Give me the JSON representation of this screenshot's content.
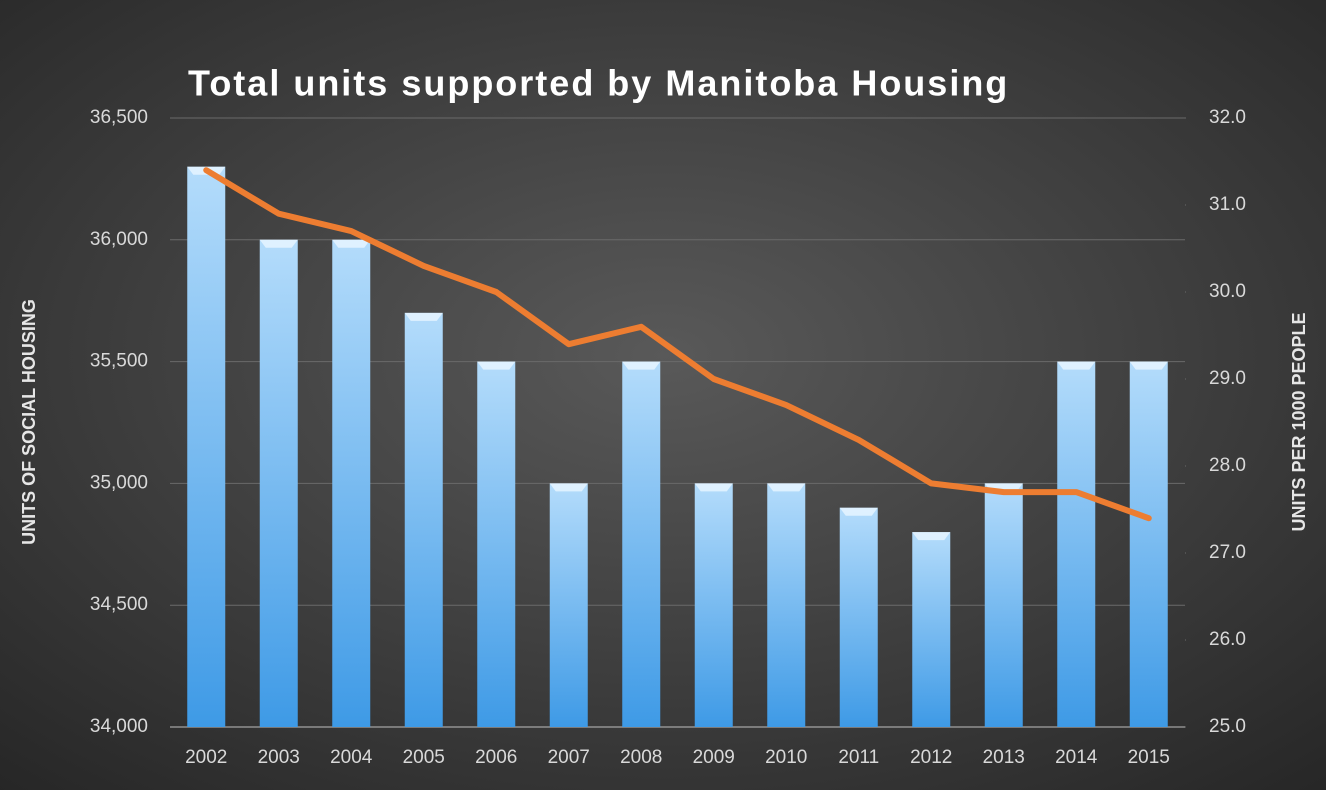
{
  "chart_data": {
    "type": "bar-line",
    "title": "Total units supported by Manitoba Housing",
    "y_label": "UNITS OF SOCIAL HOUSING",
    "y2_label": "UNITS PER 1000 PEOPLE",
    "categories": [
      "2002",
      "2003",
      "2004",
      "2005",
      "2006",
      "2007",
      "2008",
      "2009",
      "2010",
      "2011",
      "2012",
      "2013",
      "2014",
      "2015"
    ],
    "series": [
      {
        "name": "Units of social housing",
        "type": "bar",
        "color": "#5aaef0",
        "values": [
          36300,
          36000,
          36000,
          35700,
          35500,
          35000,
          35500,
          35000,
          35000,
          34900,
          34800,
          35000,
          35500,
          35500
        ]
      },
      {
        "name": "Units per 1000 people",
        "type": "line",
        "axis": "y2",
        "color": "#ed7d31",
        "values": [
          31.4,
          30.9,
          30.7,
          30.3,
          30.0,
          29.4,
          29.6,
          29.0,
          28.7,
          28.3,
          27.8,
          27.7,
          27.7,
          27.4
        ]
      }
    ],
    "ylim": [
      34000,
      36500
    ],
    "yticks": [
      {
        "value": 34000,
        "label": "34,000"
      },
      {
        "value": 34500,
        "label": "34,500"
      },
      {
        "value": 35000,
        "label": "35,000"
      },
      {
        "value": 35500,
        "label": "35,500"
      },
      {
        "value": 36000,
        "label": "36,000"
      },
      {
        "value": 36500,
        "label": "36,500"
      }
    ],
    "y2lim": [
      25,
      32
    ],
    "y2ticks": [
      {
        "value": 25,
        "label": "25.0"
      },
      {
        "value": 26,
        "label": "26.0"
      },
      {
        "value": 27,
        "label": "27.0"
      },
      {
        "value": 28,
        "label": "28.0"
      },
      {
        "value": 29,
        "label": "29.0"
      },
      {
        "value": 30,
        "label": "30.0"
      },
      {
        "value": 31,
        "label": "31.0"
      },
      {
        "value": 32,
        "label": "32.0"
      }
    ],
    "grid": true
  }
}
